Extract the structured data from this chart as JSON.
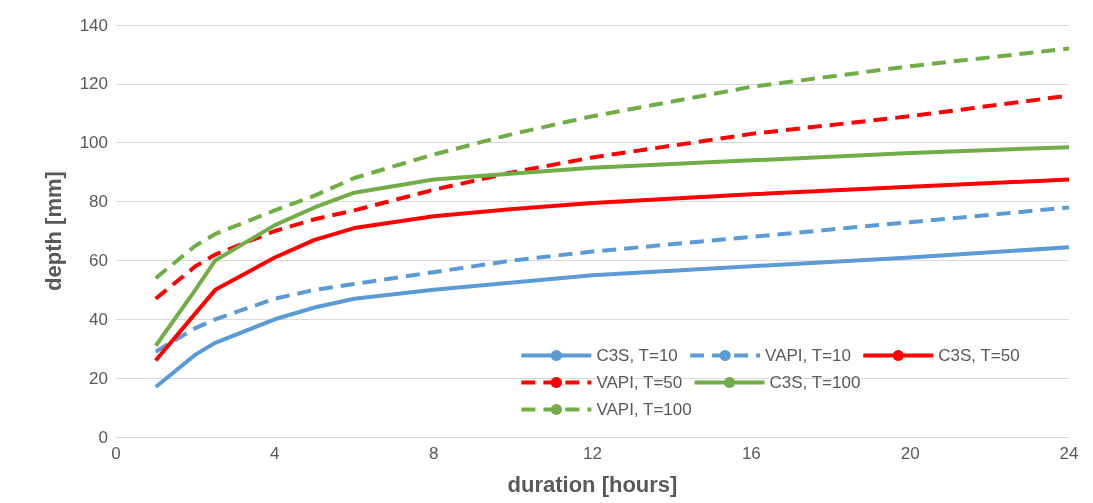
{
  "chart_data": {
    "type": "line",
    "xlabel": "duration [hours]",
    "ylabel": "depth [mm]",
    "xlim": [
      0,
      24
    ],
    "xticks": [
      0,
      4,
      8,
      12,
      16,
      20,
      24
    ],
    "ylim": [
      0,
      140
    ],
    "yticks": [
      0,
      20,
      40,
      60,
      80,
      100,
      120,
      140
    ],
    "grid": "y",
    "legend": "bottom right",
    "marker": "none",
    "x": [
      1,
      2,
      2.5,
      4,
      5,
      6,
      8,
      10,
      12,
      16,
      20,
      24
    ],
    "series": [
      {
        "name": "C3S, T=10",
        "color": "#5b9bd5",
        "line_style": "solid",
        "values": [
          17,
          28,
          32,
          40,
          44,
          47,
          50,
          52.5,
          55,
          58,
          61,
          64.5
        ]
      },
      {
        "name": "VAPI, T=10",
        "color": "#5b9bd5",
        "line_style": "dashed",
        "values": [
          29,
          37,
          40,
          47,
          50,
          52,
          56,
          60,
          63,
          68,
          73,
          78
        ]
      },
      {
        "name": "C3S, T=50",
        "color": "#ff0000",
        "line_style": "solid",
        "values": [
          26,
          42,
          50,
          61,
          67,
          71,
          75,
          77.5,
          79.5,
          82.5,
          85,
          87.5
        ]
      },
      {
        "name": "VAPI, T=50",
        "color": "#ff0000",
        "line_style": "dashed",
        "values": [
          47,
          58,
          62,
          70,
          74,
          77,
          84,
          90,
          95,
          103,
          109,
          116
        ]
      },
      {
        "name": "C3S, T=100",
        "color": "#70ad47",
        "line_style": "solid",
        "values": [
          31,
          50,
          60,
          72,
          78,
          83,
          87.5,
          89.5,
          91.5,
          94,
          96.5,
          98.5
        ]
      },
      {
        "name": "VAPI, T=100",
        "color": "#70ad47",
        "line_style": "dashed",
        "values": [
          54,
          65,
          69,
          77,
          82,
          88,
          96,
          103,
          109,
          119,
          126,
          132
        ]
      }
    ]
  }
}
